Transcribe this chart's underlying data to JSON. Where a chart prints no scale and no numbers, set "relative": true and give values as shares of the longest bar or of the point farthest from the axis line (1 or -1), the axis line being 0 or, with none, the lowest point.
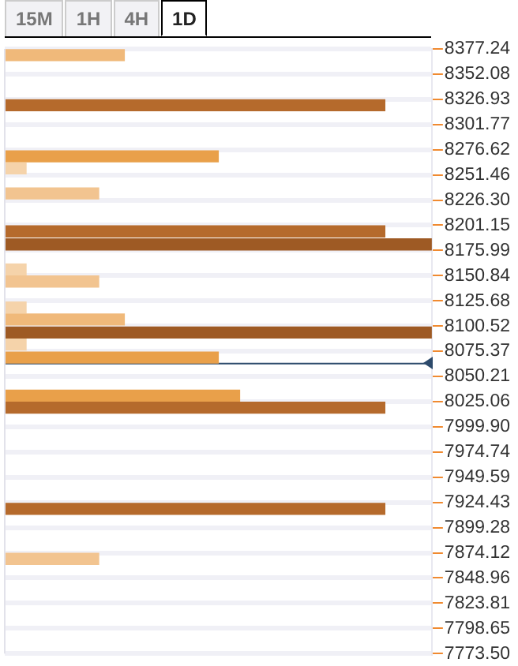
{
  "chart_data": {
    "type": "bar",
    "orientation": "horizontal",
    "relative": true,
    "grid": "y",
    "annotations": [
      "15M",
      "1H",
      "4H",
      "1D"
    ],
    "x": [
      8371,
      8321,
      8270,
      8258,
      8233,
      8195,
      8182,
      8157,
      8145,
      8119,
      8107,
      8094,
      8082,
      8069,
      8031,
      8019,
      7918,
      7868
    ],
    "values": [
      0.28,
      0.89,
      0.5,
      0.05,
      0.22,
      0.89,
      1,
      0.05,
      0.22,
      0.05,
      0.28,
      1,
      0.05,
      0.5,
      0.55,
      0.89,
      0.89,
      0.22
    ],
    "colors": [
      "#f0b97a",
      "#b56a2c",
      "#e9a04a",
      "#f5d3aa",
      "#f2c490",
      "#b56a2c",
      "#9e5a24",
      "#f5d3aa",
      "#f2c490",
      "#f5d3aa",
      "#f0b97a",
      "#9e5a24",
      "#f5d3aa",
      "#e9a04a",
      "#e9a04a",
      "#b56a2c",
      "#b56a2c",
      "#f2c490"
    ],
    "ylim": [
      7773.5,
      8377.24
    ],
    "yticks": [
      8377.24,
      8352.08,
      8326.93,
      8301.77,
      8276.62,
      8251.46,
      {
        "value": 8226.3,
        "label": "8226.30"
      },
      8201.15,
      8175.99,
      8150.84,
      8125.68,
      8100.52,
      8075.37,
      8050.21,
      8025.06,
      {
        "value": 7999.9,
        "label": "7999.90"
      },
      7974.74,
      7949.59,
      7924.43,
      7899.28,
      7874.12,
      7848.96,
      7823.81,
      7798.65,
      {
        "value": 7773.5,
        "label": "7773.50"
      }
    ],
    "ref_lines": [
      {
        "axis": "y",
        "value": 8063,
        "color": "#2c4a6b"
      }
    ]
  }
}
